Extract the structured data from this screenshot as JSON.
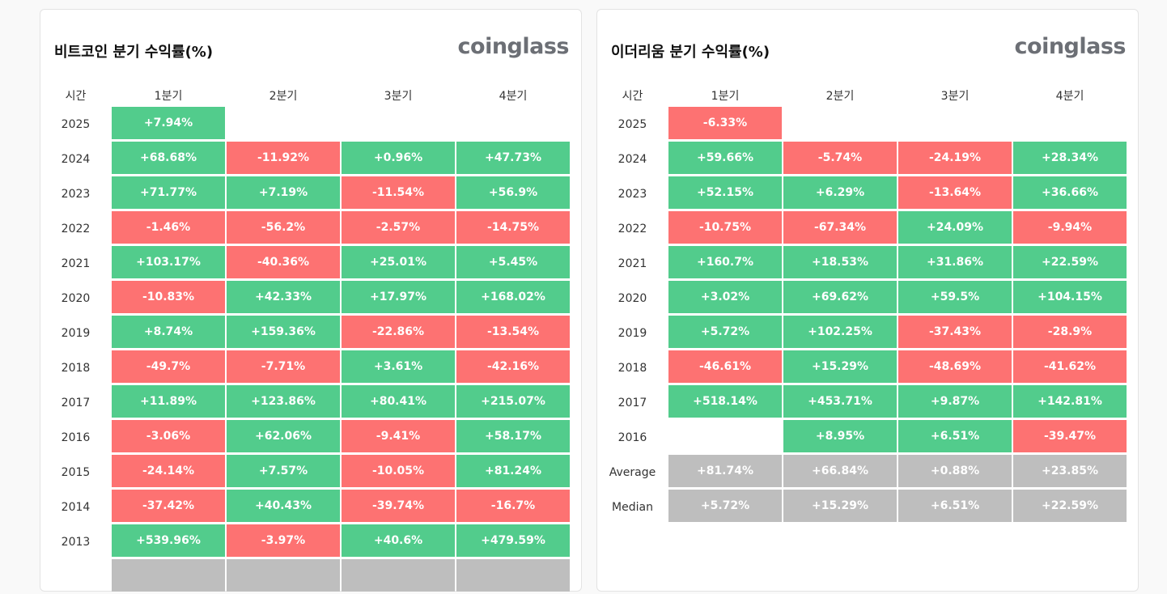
{
  "colors": {
    "positive": "#52cc8c",
    "negative": "#fd7272",
    "summary": "#bebebe"
  },
  "tables": [
    {
      "title": "비트코인 분기 수익률(%)",
      "logo": "coinglass",
      "headers": [
        "시간",
        "1분기",
        "2분기",
        "3분기",
        "4분기"
      ],
      "rows": [
        {
          "label": "2025",
          "values": [
            "+7.94%",
            "",
            "",
            ""
          ]
        },
        {
          "label": "2024",
          "values": [
            "+68.68%",
            "-11.92%",
            "+0.96%",
            "+47.73%"
          ]
        },
        {
          "label": "2023",
          "values": [
            "+71.77%",
            "+7.19%",
            "-11.54%",
            "+56.9%"
          ]
        },
        {
          "label": "2022",
          "values": [
            "-1.46%",
            "-56.2%",
            "-2.57%",
            "-14.75%"
          ]
        },
        {
          "label": "2021",
          "values": [
            "+103.17%",
            "-40.36%",
            "+25.01%",
            "+5.45%"
          ]
        },
        {
          "label": "2020",
          "values": [
            "-10.83%",
            "+42.33%",
            "+17.97%",
            "+168.02%"
          ]
        },
        {
          "label": "2019",
          "values": [
            "+8.74%",
            "+159.36%",
            "-22.86%",
            "-13.54%"
          ]
        },
        {
          "label": "2018",
          "values": [
            "-49.7%",
            "-7.71%",
            "+3.61%",
            "-42.16%"
          ]
        },
        {
          "label": "2017",
          "values": [
            "+11.89%",
            "+123.86%",
            "+80.41%",
            "+215.07%"
          ]
        },
        {
          "label": "2016",
          "values": [
            "-3.06%",
            "+62.06%",
            "-9.41%",
            "+58.17%"
          ]
        },
        {
          "label": "2015",
          "values": [
            "-24.14%",
            "+7.57%",
            "-10.05%",
            "+81.24%"
          ]
        },
        {
          "label": "2014",
          "values": [
            "-37.42%",
            "+40.43%",
            "-39.74%",
            "-16.7%"
          ]
        },
        {
          "label": "2013",
          "values": [
            "+539.96%",
            "-3.97%",
            "+40.6%",
            "+479.59%"
          ]
        },
        {
          "label": "",
          "summary": true,
          "values": [
            "",
            "",
            "",
            ""
          ]
        }
      ]
    },
    {
      "title": "이더리움 분기 수익률(%)",
      "logo": "coinglass",
      "headers": [
        "시간",
        "1분기",
        "2분기",
        "3분기",
        "4분기"
      ],
      "rows": [
        {
          "label": "2025",
          "values": [
            "-6.33%",
            "",
            "",
            ""
          ]
        },
        {
          "label": "2024",
          "values": [
            "+59.66%",
            "-5.74%",
            "-24.19%",
            "+28.34%"
          ]
        },
        {
          "label": "2023",
          "values": [
            "+52.15%",
            "+6.29%",
            "-13.64%",
            "+36.66%"
          ]
        },
        {
          "label": "2022",
          "values": [
            "-10.75%",
            "-67.34%",
            "+24.09%",
            "-9.94%"
          ]
        },
        {
          "label": "2021",
          "values": [
            "+160.7%",
            "+18.53%",
            "+31.86%",
            "+22.59%"
          ]
        },
        {
          "label": "2020",
          "values": [
            "+3.02%",
            "+69.62%",
            "+59.5%",
            "+104.15%"
          ]
        },
        {
          "label": "2019",
          "values": [
            "+5.72%",
            "+102.25%",
            "-37.43%",
            "-28.9%"
          ]
        },
        {
          "label": "2018",
          "values": [
            "-46.61%",
            "+15.29%",
            "-48.69%",
            "-41.62%"
          ]
        },
        {
          "label": "2017",
          "values": [
            "+518.14%",
            "+453.71%",
            "+9.87%",
            "+142.81%"
          ]
        },
        {
          "label": "2016",
          "values": [
            "",
            "+8.95%",
            "+6.51%",
            "-39.47%"
          ]
        },
        {
          "label": "Average",
          "summary": true,
          "values": [
            "+81.74%",
            "+66.84%",
            "+0.88%",
            "+23.85%"
          ]
        },
        {
          "label": "Median",
          "summary": true,
          "values": [
            "+5.72%",
            "+15.29%",
            "+6.51%",
            "+22.59%"
          ]
        }
      ]
    }
  ]
}
